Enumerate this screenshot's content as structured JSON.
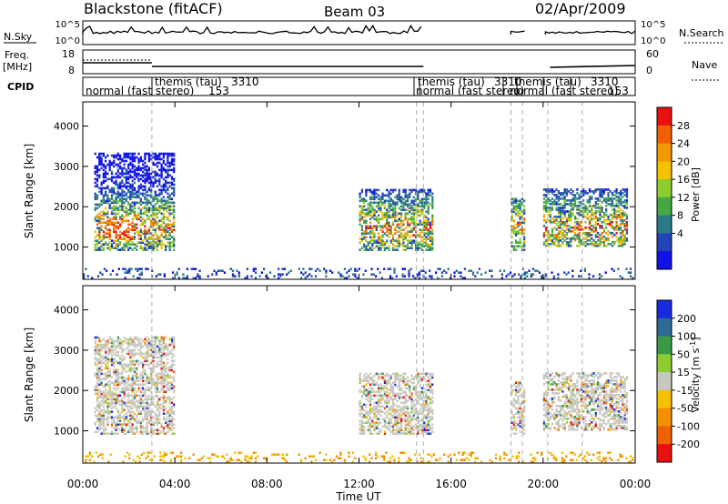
{
  "header": {
    "station": "Blackstone (fitACF)",
    "beam": "Beam 03",
    "date": "02/Apr/2009"
  },
  "left_labels": {
    "nsky": "N.Sky",
    "freq_line1": "Freq.",
    "freq_line2": "[MHz]",
    "cpid": "CPID"
  },
  "right_labels": {
    "nsearch": "N.Search",
    "nave": "Nave"
  },
  "nsky_axis": {
    "top": "10^5",
    "bottom": "10^0"
  },
  "nsearch_axis": {
    "top": "10^5",
    "bottom": "10^0"
  },
  "freq_axis": {
    "top": "18",
    "bottom": "8"
  },
  "nave_axis": {
    "top": "60",
    "bottom": "0"
  },
  "cpid_labels": {
    "normal_a": "normal (fast stereo)",
    "cpid_a": "153",
    "themis_a": "themis (tau)",
    "cpid_themis_a": "3310",
    "normal_b": "normal (fast stereo)",
    "themis_b": "themis (tau)",
    "cpid_themis_b": "3310",
    "themis_c": "themis (tau)",
    "cpid_themis_c": "3310",
    "normal_c": "normal (fast stereo)",
    "cpid_c": "153"
  },
  "x_axis": {
    "label": "Time UT",
    "ticks": [
      "00:00",
      "04:00",
      "08:00",
      "12:00",
      "16:00",
      "20:00",
      "00:00"
    ]
  },
  "power_panel": {
    "ylabel": "Slant Range [km]",
    "yticks": [
      "1000",
      "2000",
      "3000",
      "4000"
    ],
    "colorbar_label": "Power [dB]",
    "colorbar_ticks": [
      "4",
      "8",
      "12",
      "16",
      "20",
      "24",
      "28"
    ],
    "colors": [
      "#1010e8",
      "#2244b8",
      "#2a7a8a",
      "#44a844",
      "#8ccc30",
      "#f4c000",
      "#f29800",
      "#f06000",
      "#e81010"
    ]
  },
  "velocity_panel": {
    "ylabel": "Slant Range [km]",
    "yticks": [
      "1000",
      "2000",
      "3000",
      "4000"
    ],
    "colorbar_label": "Velocity [m s^-1]",
    "colorbar_ticks": [
      "200",
      "100",
      "50",
      "15",
      "-15",
      "-50",
      "-100",
      "-200"
    ],
    "colors": [
      "#1a2ae0",
      "#2e6a96",
      "#3a9a44",
      "#8ccc30",
      "#c8c8c0",
      "#f4c000",
      "#f29000",
      "#f06000",
      "#e81010"
    ]
  },
  "chart_data": [
    {
      "type": "heatmap",
      "title": "Power",
      "xlabel": "Time UT",
      "ylabel": "Slant Range [km]",
      "xlim": [
        0,
        24
      ],
      "ylim": [
        200,
        4600
      ],
      "colorbar": {
        "label": "Power [dB]",
        "range": [
          0,
          32
        ]
      },
      "regions": [
        {
          "t": [
            0.5,
            4.0
          ],
          "range": [
            900,
            3300
          ],
          "note": "main echo band, peak near 1300-1600 km"
        },
        {
          "t": [
            12.0,
            15.2
          ],
          "range": [
            900,
            2400
          ]
        },
        {
          "t": [
            18.6,
            19.2
          ],
          "range": [
            900,
            2200
          ]
        },
        {
          "t": [
            20.0,
            23.6
          ],
          "range": [
            1000,
            2400
          ]
        },
        {
          "t": [
            0.0,
            24.0
          ],
          "range": [
            200,
            450
          ],
          "note": "near-range ground scatter"
        }
      ],
      "dashed_lines_hours": [
        3.0,
        14.5,
        14.8,
        18.6,
        19.1,
        20.2,
        21.7
      ]
    },
    {
      "type": "heatmap",
      "title": "Velocity",
      "xlabel": "Time UT",
      "ylabel": "Slant Range [km]",
      "xlim": [
        0,
        24
      ],
      "ylim": [
        200,
        4600
      ],
      "colorbar": {
        "label": "Velocity [m s^-1]",
        "ticks": [
          200,
          100,
          50,
          15,
          -15,
          -50,
          -100,
          -200
        ]
      },
      "regions": [
        {
          "t": [
            0.5,
            4.0
          ],
          "range": [
            900,
            3300
          ],
          "note": "mostly near-zero velocity (grey)"
        },
        {
          "t": [
            12.0,
            15.2
          ],
          "range": [
            900,
            2400
          ]
        },
        {
          "t": [
            18.6,
            19.2
          ],
          "range": [
            900,
            2200
          ]
        },
        {
          "t": [
            20.0,
            23.6
          ],
          "range": [
            1000,
            2400
          ]
        },
        {
          "t": [
            0.0,
            24.0
          ],
          "range": [
            200,
            450
          ],
          "note": "near-range negative velocity (yellow/orange)"
        }
      ],
      "dashed_lines_hours": [
        3.0,
        14.5,
        14.8,
        18.6,
        19.1,
        20.2,
        21.7
      ]
    }
  ]
}
